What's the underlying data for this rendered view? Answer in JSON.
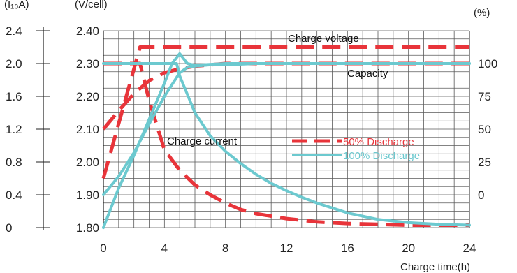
{
  "chart_data": {
    "type": "line",
    "x_axis": {
      "label": "Charge time(h)",
      "min": 0,
      "max": 24,
      "ticks": [
        0,
        4,
        8,
        12,
        16,
        20,
        24
      ]
    },
    "y_axis_current": {
      "unit": "(I₁₀A)",
      "min": 0,
      "max": 2.4,
      "ticks": [
        "0",
        "0.4",
        "0.8",
        "1.2",
        "1.6",
        "2.0",
        "2.4"
      ]
    },
    "y_axis_voltage": {
      "unit": "(V/cell)",
      "min": 1.8,
      "max": 2.4,
      "ticks": [
        "1.80",
        "1.90",
        "2.00",
        "2.10",
        "2.20",
        "2.30",
        "2.40"
      ]
    },
    "y_axis_capacity": {
      "unit": "(%)",
      "min": 0,
      "max": 100,
      "ticks": [
        "0",
        "25",
        "50",
        "75",
        "100"
      ]
    },
    "grid": true,
    "annotations": {
      "charge_voltage": "Charge voltage",
      "capacity": "Capacity",
      "charge_current": "Charge current"
    },
    "legend": {
      "position": "center-right",
      "items": [
        {
          "name": "50% Discharge",
          "color": "#e8343a",
          "style": "dashed"
        },
        {
          "name": "100% Discharge",
          "color": "#6cc9cf",
          "style": "solid"
        }
      ]
    },
    "series": [
      {
        "name": "50% Discharge",
        "kind": "Charge voltage",
        "axis": "voltage",
        "color": "#e8343a",
        "style": "dashed",
        "x": [
          0,
          2.4,
          24
        ],
        "y": [
          1.95,
          2.35,
          2.35
        ]
      },
      {
        "name": "50% Discharge",
        "kind": "Capacity",
        "axis": "capacity",
        "color": "#e8343a",
        "style": "dashed",
        "x": [
          0,
          1,
          2,
          3,
          4,
          5,
          6,
          8,
          10,
          24
        ],
        "y": [
          50,
          64,
          77,
          87,
          93,
          96,
          98,
          100,
          100,
          100
        ]
      },
      {
        "name": "50% Discharge",
        "kind": "Charge current",
        "axis": "current",
        "color": "#e8343a",
        "style": "dashed",
        "x": [
          0,
          2,
          2.4,
          3,
          4,
          5,
          6,
          7,
          8,
          9,
          10,
          12,
          14,
          16,
          18,
          20,
          22,
          24
        ],
        "y": [
          2.0,
          2.0,
          2.0,
          1.55,
          0.95,
          0.7,
          0.52,
          0.4,
          0.3,
          0.22,
          0.17,
          0.11,
          0.07,
          0.05,
          0.04,
          0.03,
          0.03,
          0.03
        ]
      },
      {
        "name": "100% Discharge",
        "kind": "Charge voltage",
        "axis": "voltage",
        "color": "#6cc9cf",
        "style": "solid",
        "x": [
          0,
          1,
          2,
          3,
          4,
          4.5,
          5,
          5.5,
          6,
          8,
          24
        ],
        "y": [
          1.8,
          1.92,
          2.02,
          2.13,
          2.24,
          2.3,
          2.33,
          2.3,
          2.295,
          2.3,
          2.3
        ]
      },
      {
        "name": "100% Discharge",
        "kind": "Capacity",
        "axis": "capacity",
        "color": "#6cc9cf",
        "style": "solid",
        "x": [
          0,
          1,
          2,
          3,
          4,
          5,
          5.5,
          6,
          7,
          8,
          10,
          12,
          24
        ],
        "y": [
          0,
          14,
          32,
          54,
          75,
          93,
          97,
          98,
          99,
          99,
          100,
          100,
          100
        ]
      },
      {
        "name": "100% Discharge",
        "kind": "Charge current",
        "axis": "current",
        "color": "#6cc9cf",
        "style": "solid",
        "x": [
          0,
          4.8,
          5,
          6,
          7,
          8,
          9,
          10,
          11,
          12,
          13,
          14,
          15,
          16,
          18,
          20,
          22,
          24
        ],
        "y": [
          2.0,
          2.0,
          1.85,
          1.4,
          1.12,
          0.93,
          0.78,
          0.65,
          0.54,
          0.45,
          0.37,
          0.3,
          0.24,
          0.18,
          0.1,
          0.06,
          0.04,
          0.03
        ]
      }
    ]
  }
}
